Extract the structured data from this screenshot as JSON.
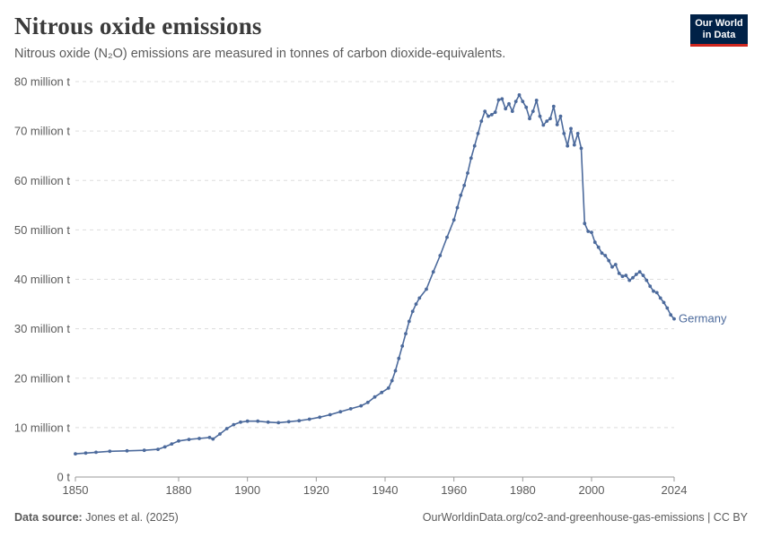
{
  "header": {
    "title": "Nitrous oxide emissions",
    "subtitle": "Nitrous oxide (N₂O) emissions are measured in tonnes of carbon dioxide-equivalents."
  },
  "logo": {
    "line1": "Our World",
    "line2": "in Data"
  },
  "footer": {
    "source_label": "Data source:",
    "source_text": "Jones et al. (2025)",
    "url_text": "OurWorldinData.org/co2-and-greenhouse-gas-emissions | CC BY"
  },
  "colors": {
    "series": "#4c6a9c",
    "logo_bg": "#002147",
    "logo_accent": "#ce261e",
    "grid": "#dddddd"
  },
  "chart_data": {
    "type": "line",
    "title": "Nitrous oxide emissions",
    "xlim": [
      1850,
      2024
    ],
    "ylim": [
      0,
      80000000
    ],
    "grid": true,
    "x_ticks": [
      {
        "value": 1850,
        "label": "1850"
      },
      {
        "value": 1880,
        "label": "1880"
      },
      {
        "value": 1900,
        "label": "1900"
      },
      {
        "value": 1920,
        "label": "1920"
      },
      {
        "value": 1940,
        "label": "1940"
      },
      {
        "value": 1960,
        "label": "1960"
      },
      {
        "value": 1980,
        "label": "1980"
      },
      {
        "value": 2000,
        "label": "2000"
      },
      {
        "value": 2024,
        "label": "2024"
      }
    ],
    "y_ticks": [
      {
        "value": 0,
        "label": "0 t"
      },
      {
        "value": 10000000,
        "label": "10 million t"
      },
      {
        "value": 20000000,
        "label": "20 million t"
      },
      {
        "value": 30000000,
        "label": "30 million t"
      },
      {
        "value": 40000000,
        "label": "40 million t"
      },
      {
        "value": 50000000,
        "label": "50 million t"
      },
      {
        "value": 60000000,
        "label": "60 million t"
      },
      {
        "value": 70000000,
        "label": "70 million t"
      },
      {
        "value": 80000000,
        "label": "80 million t"
      }
    ],
    "series": [
      {
        "name": "Germany",
        "points": [
          [
            1850,
            4.7
          ],
          [
            1853,
            4.85
          ],
          [
            1856,
            5.0
          ],
          [
            1860,
            5.2
          ],
          [
            1865,
            5.3
          ],
          [
            1870,
            5.4
          ],
          [
            1874,
            5.6
          ],
          [
            1876,
            6.1
          ],
          [
            1878,
            6.7
          ],
          [
            1880,
            7.3
          ],
          [
            1883,
            7.6
          ],
          [
            1886,
            7.8
          ],
          [
            1889,
            8.0
          ],
          [
            1890,
            7.7
          ],
          [
            1892,
            8.7
          ],
          [
            1894,
            9.8
          ],
          [
            1896,
            10.6
          ],
          [
            1898,
            11.1
          ],
          [
            1900,
            11.3
          ],
          [
            1903,
            11.3
          ],
          [
            1906,
            11.1
          ],
          [
            1909,
            11.0
          ],
          [
            1912,
            11.2
          ],
          [
            1915,
            11.4
          ],
          [
            1918,
            11.7
          ],
          [
            1921,
            12.1
          ],
          [
            1924,
            12.6
          ],
          [
            1927,
            13.2
          ],
          [
            1930,
            13.8
          ],
          [
            1933,
            14.4
          ],
          [
            1935,
            15.1
          ],
          [
            1937,
            16.2
          ],
          [
            1939,
            17.1
          ],
          [
            1941,
            18.0
          ],
          [
            1942,
            19.5
          ],
          [
            1943,
            21.5
          ],
          [
            1944,
            24.0
          ],
          [
            1945,
            26.5
          ],
          [
            1946,
            29.0
          ],
          [
            1947,
            31.5
          ],
          [
            1948,
            33.5
          ],
          [
            1949,
            35.0
          ],
          [
            1950,
            36.2
          ],
          [
            1952,
            38.0
          ],
          [
            1954,
            41.5
          ],
          [
            1956,
            44.8
          ],
          [
            1958,
            48.5
          ],
          [
            1960,
            52.0
          ],
          [
            1961,
            54.5
          ],
          [
            1962,
            57.0
          ],
          [
            1963,
            59.0
          ],
          [
            1964,
            61.5
          ],
          [
            1965,
            64.5
          ],
          [
            1966,
            67.0
          ],
          [
            1967,
            69.5
          ],
          [
            1968,
            72.0
          ],
          [
            1969,
            74.0
          ],
          [
            1970,
            73.0
          ],
          [
            1971,
            73.3
          ],
          [
            1972,
            73.8
          ],
          [
            1973,
            76.3
          ],
          [
            1974,
            76.5
          ],
          [
            1975,
            74.5
          ],
          [
            1976,
            75.5
          ],
          [
            1977,
            74.0
          ],
          [
            1978,
            76.0
          ],
          [
            1979,
            77.3
          ],
          [
            1980,
            76.0
          ],
          [
            1981,
            74.8
          ],
          [
            1982,
            72.5
          ],
          [
            1983,
            74.0
          ],
          [
            1984,
            76.2
          ],
          [
            1985,
            73.0
          ],
          [
            1986,
            71.2
          ],
          [
            1987,
            72.0
          ],
          [
            1988,
            72.5
          ],
          [
            1989,
            75.0
          ],
          [
            1990,
            71.3
          ],
          [
            1991,
            73.0
          ],
          [
            1992,
            69.5
          ],
          [
            1993,
            67.0
          ],
          [
            1994,
            70.5
          ],
          [
            1995,
            67.2
          ],
          [
            1996,
            69.5
          ],
          [
            1997,
            66.5
          ],
          [
            1998,
            51.3
          ],
          [
            1999,
            49.7
          ],
          [
            2000,
            49.5
          ],
          [
            2001,
            47.5
          ],
          [
            2002,
            46.5
          ],
          [
            2003,
            45.3
          ],
          [
            2004,
            44.8
          ],
          [
            2005,
            43.8
          ],
          [
            2006,
            42.5
          ],
          [
            2007,
            43.0
          ],
          [
            2008,
            41.2
          ],
          [
            2009,
            40.6
          ],
          [
            2010,
            40.8
          ],
          [
            2011,
            39.8
          ],
          [
            2012,
            40.3
          ],
          [
            2013,
            41.0
          ],
          [
            2014,
            41.5
          ],
          [
            2015,
            40.8
          ],
          [
            2016,
            39.8
          ],
          [
            2017,
            38.6
          ],
          [
            2018,
            37.6
          ],
          [
            2019,
            37.3
          ],
          [
            2020,
            36.2
          ],
          [
            2021,
            35.3
          ],
          [
            2022,
            34.2
          ],
          [
            2023,
            32.8
          ],
          [
            2024,
            32.0
          ]
        ],
        "unit_scale": "millions of tonnes"
      }
    ]
  }
}
